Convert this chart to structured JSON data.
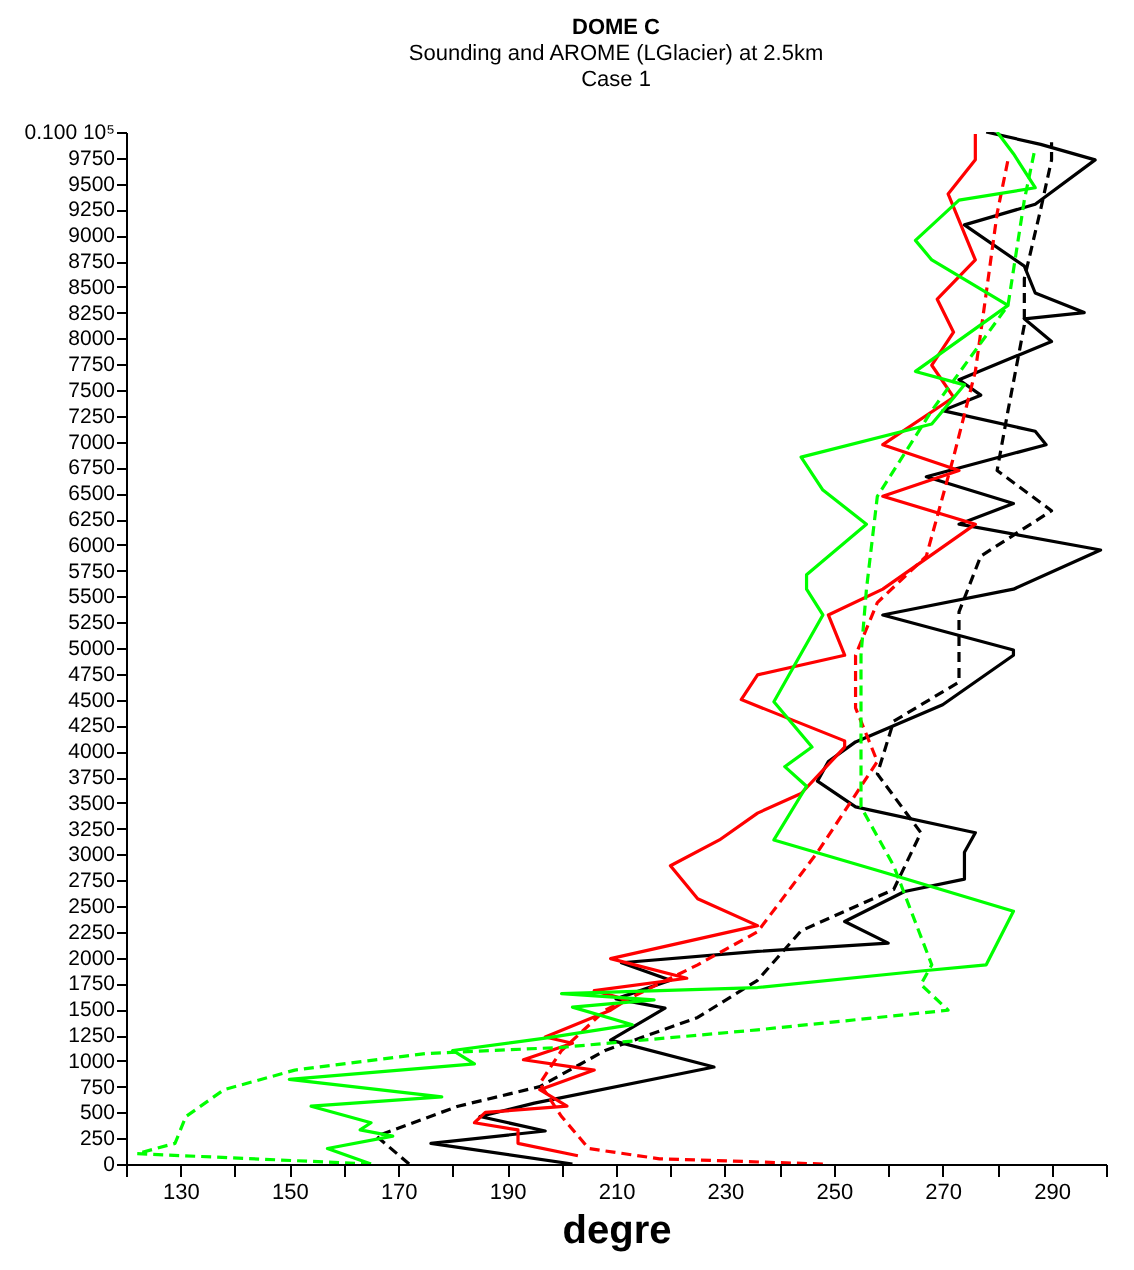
{
  "chart_data": {
    "type": "line",
    "title": "DOME C",
    "subtitle": "Sounding and AROME (LGlacier) at 2.5km\nCase 1",
    "xlabel": "degre",
    "xlim": [
      120,
      300
    ],
    "xticks": [
      {
        "value": 120,
        "label": null
      },
      130,
      {
        "value": 140,
        "label": null
      },
      150,
      {
        "value": 160,
        "label": null
      },
      170,
      {
        "value": 180,
        "label": null
      },
      190,
      {
        "value": 200,
        "label": null
      },
      210,
      {
        "value": 220,
        "label": null
      },
      230,
      {
        "value": 240,
        "label": null
      },
      250,
      {
        "value": 260,
        "label": null
      },
      270,
      {
        "value": 280,
        "label": null
      },
      290,
      {
        "value": 300,
        "label": null
      }
    ],
    "ylim": [
      0,
      10000
    ],
    "yticks": [
      0,
      250,
      500,
      750,
      1000,
      1250,
      1500,
      1750,
      2000,
      2250,
      2500,
      2750,
      3000,
      3250,
      3500,
      3750,
      4000,
      4250,
      4500,
      4750,
      5000,
      5250,
      5500,
      5750,
      6000,
      6250,
      6500,
      6750,
      7000,
      7250,
      7500,
      7750,
      8000,
      8250,
      8500,
      8750,
      9000,
      9250,
      9500,
      9750,
      {
        "value": 10000,
        "label": "0.100 10⁵"
      }
    ],
    "grid": false,
    "series": [
      {
        "color": "#000000",
        "line_style": "solid",
        "x": [
          202,
          176,
          197,
          185,
          195,
          228,
          209,
          219,
          210,
          220,
          211,
          236,
          260,
          252,
          263,
          274,
          274,
          276,
          254,
          247,
          249,
          254,
          270,
          283,
          283,
          259,
          283,
          299,
          273,
          283,
          267,
          289,
          287,
          270,
          277,
          273,
          290,
          285,
          296,
          287,
          285,
          274,
          287,
          298,
          288,
          278
        ],
        "values": [
          0,
          200,
          320,
          460,
          590,
          940,
          1200,
          1510,
          1600,
          1780,
          1950,
          2060,
          2140,
          2350,
          2640,
          2760,
          3020,
          3210,
          3460,
          3710,
          3900,
          4090,
          4450,
          4930,
          4980,
          5320,
          5570,
          5950,
          6200,
          6400,
          6660,
          6970,
          7100,
          7300,
          7450,
          7600,
          7970,
          8190,
          8250,
          8440,
          8700,
          9100,
          9300,
          9730,
          9880,
          10000
        ]
      },
      {
        "color": "#000000",
        "line_style": "dashed",
        "x": [
          172,
          166,
          181,
          196,
          208,
          225,
          236,
          244,
          261,
          266,
          258,
          261,
          273,
          273,
          277,
          290,
          280,
          282,
          285,
          285,
          288,
          290,
          290
        ],
        "values": [
          0,
          270,
          560,
          750,
          1100,
          1420,
          1780,
          2260,
          2660,
          3210,
          3780,
          4290,
          4670,
          5350,
          5890,
          6330,
          6720,
          7300,
          8130,
          8580,
          9250,
          9730,
          9900
        ]
      },
      {
        "color": "#ff0000",
        "line_style": "solid",
        "x": [
          203,
          192,
          192,
          184,
          186,
          201,
          196,
          206,
          193,
          202,
          197,
          209,
          212,
          206,
          223,
          209,
          236,
          225,
          220,
          229,
          236,
          244,
          252,
          252,
          233,
          236,
          252,
          249,
          259,
          276,
          259,
          273,
          259,
          272,
          268,
          272,
          269,
          276,
          271,
          276,
          276
        ],
        "values": [
          80,
          200,
          330,
          400,
          500,
          560,
          720,
          910,
          1010,
          1170,
          1230,
          1490,
          1590,
          1680,
          1800,
          1990,
          2310,
          2570,
          2890,
          3140,
          3400,
          3590,
          4040,
          4100,
          4500,
          4740,
          4930,
          5320,
          5570,
          6200,
          6470,
          6720,
          6970,
          7430,
          7740,
          8060,
          8380,
          8760,
          9400,
          9730,
          9980
        ]
      },
      {
        "color": "#ff0000",
        "line_style": "dashed",
        "x": [
          248,
          218,
          205,
          200,
          196,
          200,
          208,
          225,
          236,
          247,
          258,
          254,
          254,
          258,
          267,
          272,
          276,
          278,
          280,
          282
        ],
        "values": [
          0,
          50,
          150,
          460,
          780,
          1100,
          1490,
          1930,
          2250,
          3020,
          3900,
          4420,
          4930,
          5440,
          5890,
          6850,
          7680,
          8440,
          9210,
          9730
        ]
      },
      {
        "color": "#00ff00",
        "line_style": "solid",
        "x": [
          165,
          157,
          169,
          163,
          165,
          154,
          178,
          150,
          184,
          180,
          197,
          213,
          202,
          217,
          200,
          236,
          266,
          278,
          283,
          259,
          239,
          245,
          241,
          246,
          239,
          248,
          245,
          245,
          256,
          248,
          244,
          268,
          274,
          265,
          282,
          268,
          265,
          273,
          287,
          283,
          280
        ],
        "values": [
          0,
          150,
          270,
          330,
          400,
          560,
          650,
          820,
          970,
          1100,
          1220,
          1350,
          1520,
          1590,
          1650,
          1710,
          1870,
          1930,
          2450,
          2830,
          3140,
          3660,
          3850,
          4040,
          4480,
          5320,
          5570,
          5710,
          6200,
          6530,
          6850,
          7170,
          7550,
          7680,
          8320,
          8760,
          8950,
          9340,
          9460,
          9790,
          10000
        ]
      },
      {
        "color": "#00ff00",
        "line_style": "dashed",
        "x": [
          165,
          122,
          129,
          131,
          138,
          151,
          175,
          200,
          236,
          271,
          266,
          268,
          261,
          255,
          255,
          256,
          258,
          268,
          282,
          285,
          287
        ],
        "values": [
          0,
          100,
          200,
          460,
          720,
          910,
          1070,
          1130,
          1300,
          1490,
          1740,
          1930,
          2890,
          3460,
          4930,
          5570,
          6470,
          7300,
          8320,
          9340,
          9850
        ]
      }
    ]
  }
}
